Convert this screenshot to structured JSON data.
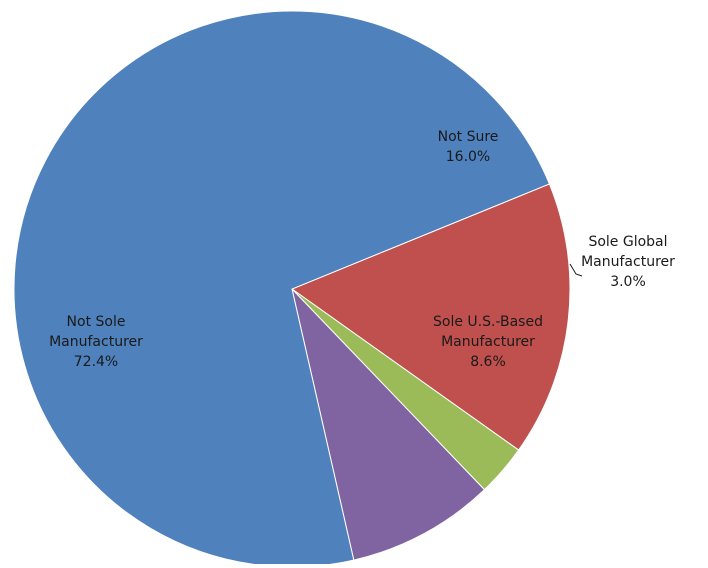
{
  "chart_data": {
    "type": "pie",
    "title": "",
    "legend": "none",
    "slices": [
      {
        "name": "Not Sure",
        "label_lines": [
          "Not Sure",
          "16.0%"
        ],
        "value": 16.0,
        "color": "#C0504D"
      },
      {
        "name": "Sole Global Manufacturer",
        "label_lines": [
          "Sole Global",
          "Manufacturer",
          "3.0%"
        ],
        "value": 3.0,
        "color": "#9BBB59"
      },
      {
        "name": "Sole U.S.-Based Manufacturer",
        "label_lines": [
          "Sole U.S.-Based",
          "Manufacturer",
          "8.6%"
        ],
        "value": 8.6,
        "color": "#8064A2"
      },
      {
        "name": "Not Sole Manufacturer",
        "label_lines": [
          "Not Sole",
          "Manufacturer",
          "72.4%"
        ],
        "value": 72.4,
        "color": "#4F81BD"
      }
    ]
  }
}
